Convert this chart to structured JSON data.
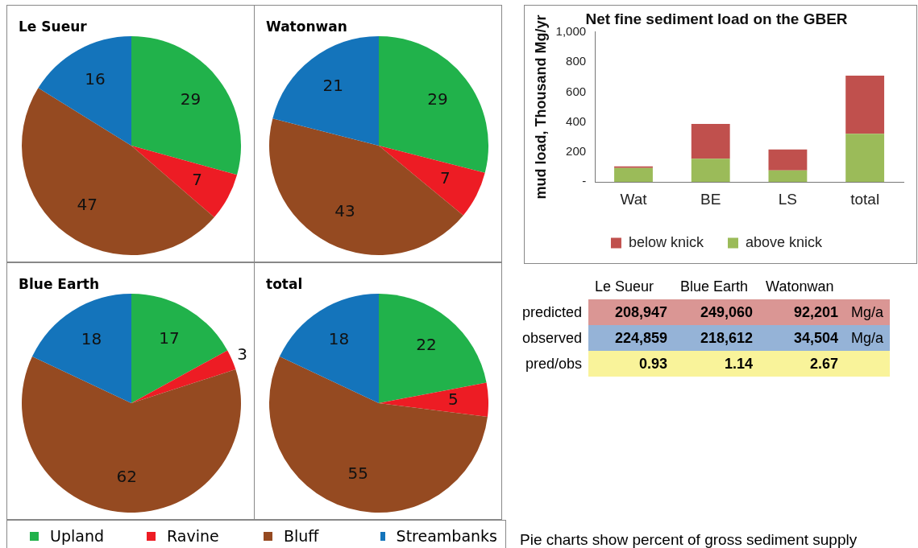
{
  "chart_data": [
    {
      "type": "pie",
      "title": "Le Sueur",
      "categories": [
        "Upland",
        "Ravine",
        "Bluff",
        "Streambanks"
      ],
      "values": [
        29,
        7,
        47,
        16
      ],
      "colors": [
        "#21b24b",
        "#ed1c24",
        "#954a21",
        "#1474bb"
      ],
      "data_labels": true,
      "legend": "bottom"
    },
    {
      "type": "pie",
      "title": "Watonwan",
      "categories": [
        null,
        null,
        null,
        null
      ],
      "values": [
        29,
        7,
        43,
        21
      ],
      "colors": [
        "#21b24b",
        "#ed1c24",
        "#954a21",
        "#1474bb"
      ],
      "data_labels": true
    },
    {
      "type": "pie",
      "title": "Blue Earth",
      "categories": [
        null,
        null,
        null,
        null
      ],
      "values": [
        17,
        3,
        62,
        18
      ],
      "colors": [
        "#21b24b",
        "#ed1c24",
        "#954a21",
        "#1474bb"
      ],
      "data_labels": true
    },
    {
      "type": "pie",
      "title": "total",
      "categories": [
        null,
        null,
        null,
        null
      ],
      "values": [
        22,
        5,
        55,
        18
      ],
      "colors": [
        "#21b24b",
        "#ed1c24",
        "#954a21",
        "#1474bb"
      ],
      "data_labels": true
    },
    {
      "type": "bar",
      "title": "Net fine sediment load on the GBER",
      "ylabel": "mud load, Thousand Mg/yr",
      "categories": [
        "Wat",
        "BE",
        "LS",
        "total"
      ],
      "stacked": true,
      "legend": "bottom",
      "ylim": [
        0,
        1000
      ],
      "yticks": [
        {
          "value": 0,
          "label": "-"
        },
        200,
        400,
        600,
        800,
        {
          "value": 1000,
          "label": "1,000"
        }
      ],
      "series": [
        {
          "name": "above knick",
          "color": "#9bbb59",
          "values": [
            93,
            155,
            78,
            322
          ]
        },
        {
          "name": "below knick",
          "color": "#c0504d",
          "values": [
            11,
            233,
            139,
            387
          ]
        }
      ]
    },
    {
      "type": "other",
      "categories": [
        "Le Sueur",
        "Blue Earth",
        "Watonwan"
      ],
      "annotations": [
        "Mg/a",
        "Mg/a"
      ],
      "series": [
        {
          "name": "predicted",
          "color": "#da9694",
          "values": [
            208947,
            249060,
            92201
          ],
          "value_labels": [
            "208,947",
            "249,060",
            "92,201"
          ]
        },
        {
          "name": "observed",
          "color": "#95b3d7",
          "values": [
            224859,
            218612,
            34504
          ],
          "value_labels": [
            "224,859",
            "218,612",
            "34,504"
          ]
        },
        {
          "name": "pred/obs",
          "color": "#f9f39a",
          "values": [
            0.93,
            1.14,
            2.67
          ],
          "value_labels": [
            "0.93",
            "1.14",
            "2.67"
          ]
        }
      ]
    },
    {
      "type": "other",
      "annotations": [
        "Pie charts show percent of gross sediment supply"
      ]
    }
  ]
}
